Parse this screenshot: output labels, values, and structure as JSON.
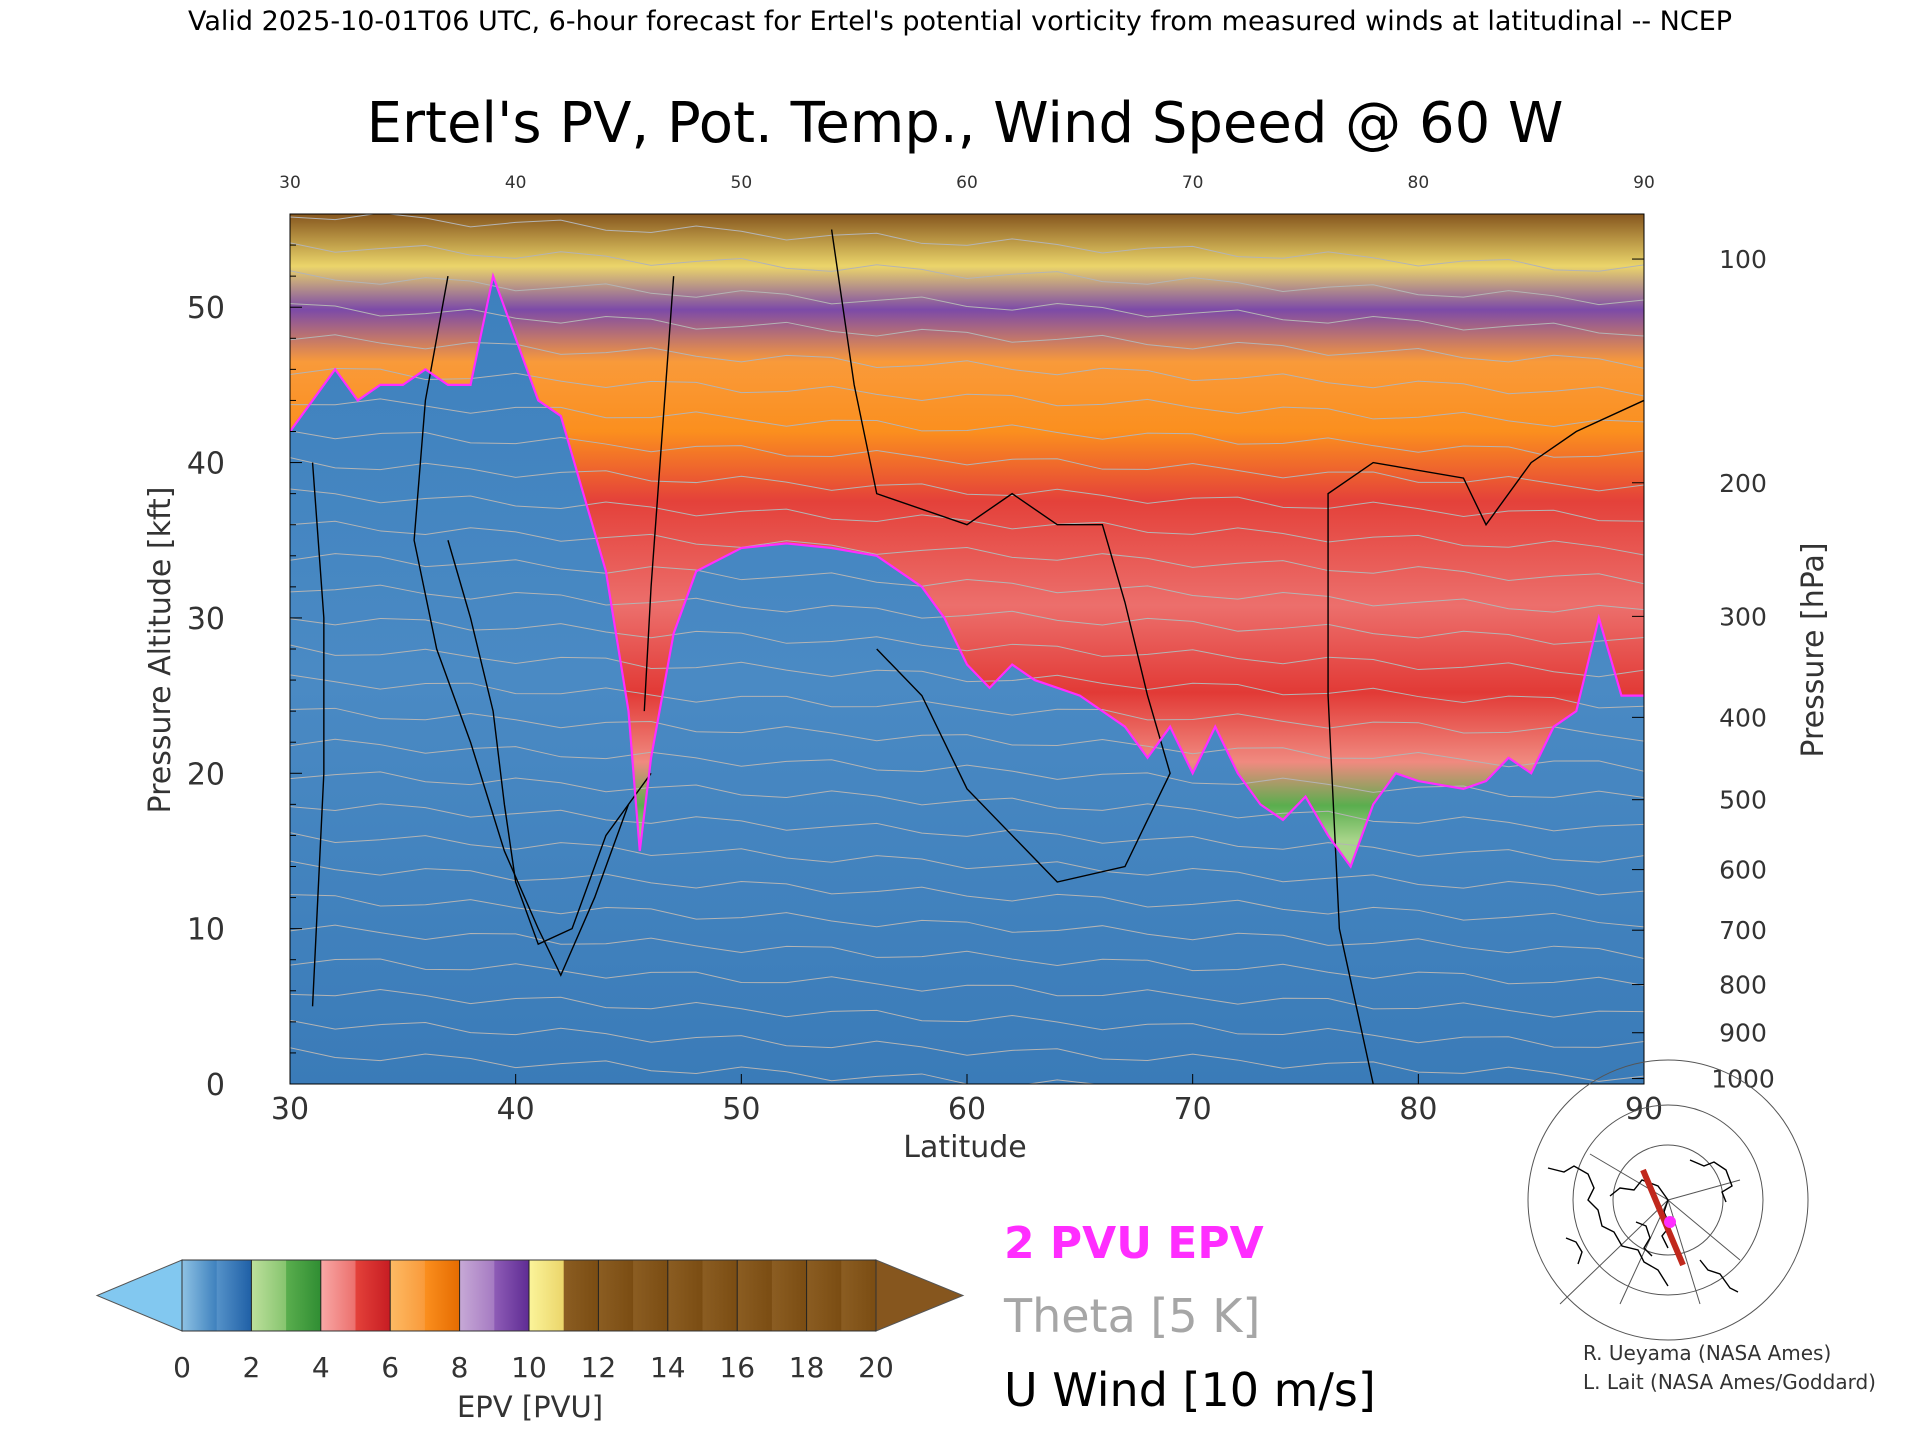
{
  "header": {
    "top_line": "Valid 2025-10-01T06 UTC, 6-hour forecast for Ertel's potential vorticity from measured winds at latitudinal -- NCEP",
    "main_title": "Ertel's PV, Pot. Temp., Wind Speed @ 60 W"
  },
  "chart_data": {
    "type": "heatmap",
    "title": "Ertel's PV, Pot. Temp., Wind Speed @ 60 W",
    "xlabel": "Latitude",
    "ylabel_left": "Pressure Altitude [kft]",
    "ylabel_right": "Pressure [hPa]",
    "xlim": [
      30,
      90
    ],
    "ylim": [
      0,
      56
    ],
    "x_ticks": [
      30,
      40,
      50,
      60,
      70,
      80,
      90
    ],
    "x_ticks_top": [
      30,
      40,
      50,
      60,
      70,
      80,
      90
    ],
    "y_ticks": [
      0,
      10,
      20,
      30,
      40,
      50
    ],
    "pressure_ticks": [
      {
        "hPa": 1000,
        "kft": 0.35
      },
      {
        "hPa": 900,
        "kft": 3.3
      },
      {
        "hPa": 800,
        "kft": 6.4
      },
      {
        "hPa": 700,
        "kft": 9.9
      },
      {
        "hPa": 600,
        "kft": 13.8
      },
      {
        "hPa": 500,
        "kft": 18.3
      },
      {
        "hPa": 400,
        "kft": 23.6
      },
      {
        "hPa": 300,
        "kft": 30.1
      },
      {
        "hPa": 200,
        "kft": 38.7
      },
      {
        "hPa": 100,
        "kft": 53.1
      }
    ],
    "tropopause_2pvu_kft": [
      [
        30,
        42
      ],
      [
        31,
        44
      ],
      [
        32,
        46
      ],
      [
        33,
        44
      ],
      [
        34,
        45
      ],
      [
        35,
        45
      ],
      [
        36,
        46
      ],
      [
        37,
        45
      ],
      [
        38,
        45
      ],
      [
        39,
        52
      ],
      [
        40,
        48
      ],
      [
        41,
        44
      ],
      [
        42,
        43
      ],
      [
        43,
        38
      ],
      [
        44,
        33
      ],
      [
        45,
        24
      ],
      [
        45.5,
        15
      ],
      [
        46,
        21
      ],
      [
        47,
        29
      ],
      [
        48,
        33
      ],
      [
        50,
        34.5
      ],
      [
        52,
        34.8
      ],
      [
        54,
        34.5
      ],
      [
        56,
        34
      ],
      [
        58,
        32
      ],
      [
        59,
        30
      ],
      [
        60,
        27
      ],
      [
        61,
        25.5
      ],
      [
        62,
        27
      ],
      [
        63,
        26
      ],
      [
        64,
        25.5
      ],
      [
        65,
        25
      ],
      [
        66,
        24
      ],
      [
        67,
        23
      ],
      [
        68,
        21
      ],
      [
        69,
        23
      ],
      [
        70,
        20
      ],
      [
        71,
        23
      ],
      [
        72,
        20
      ],
      [
        73,
        18
      ],
      [
        74,
        17
      ],
      [
        75,
        18.5
      ],
      [
        76,
        16
      ],
      [
        77,
        14
      ],
      [
        78,
        18
      ],
      [
        79,
        20
      ],
      [
        80,
        19.5
      ],
      [
        82,
        19
      ],
      [
        83,
        19.5
      ],
      [
        84,
        21
      ],
      [
        85,
        20
      ],
      [
        86,
        23
      ],
      [
        87,
        24
      ],
      [
        88,
        30
      ],
      [
        89,
        25
      ],
      [
        90,
        25
      ]
    ],
    "u_wind_10_contours": [
      [
        [
          31,
          5
        ],
        [
          31.5,
          20
        ],
        [
          31.5,
          30
        ],
        [
          31,
          40
        ]
      ],
      [
        [
          37,
          52
        ],
        [
          36,
          44
        ],
        [
          35.5,
          35
        ],
        [
          36.5,
          28
        ],
        [
          38,
          22
        ],
        [
          39.5,
          15
        ],
        [
          41,
          10
        ],
        [
          42,
          7
        ],
        [
          43.5,
          12
        ],
        [
          45,
          18
        ],
        [
          46,
          20
        ]
      ],
      [
        [
          37,
          35
        ],
        [
          38,
          30
        ],
        [
          39,
          24
        ],
        [
          39.5,
          18
        ],
        [
          40,
          13
        ],
        [
          41,
          9
        ],
        [
          42.5,
          10
        ],
        [
          44,
          16
        ],
        [
          45,
          18
        ]
      ],
      [
        [
          47,
          52
        ],
        [
          46.5,
          42
        ],
        [
          46,
          32
        ],
        [
          45.7,
          24
        ]
      ],
      [
        [
          54,
          55
        ],
        [
          55,
          45
        ],
        [
          56,
          38
        ],
        [
          60,
          36
        ],
        [
          62,
          38
        ],
        [
          64,
          36
        ],
        [
          66,
          36
        ],
        [
          67,
          31
        ],
        [
          68,
          25
        ],
        [
          69,
          20
        ],
        [
          67,
          14
        ],
        [
          64,
          13
        ],
        [
          62,
          16
        ],
        [
          60,
          19
        ],
        [
          58,
          25
        ],
        [
          56,
          28
        ]
      ],
      [
        [
          78,
          0
        ],
        [
          76.5,
          10
        ],
        [
          76,
          25
        ],
        [
          76,
          38
        ],
        [
          78,
          40
        ],
        [
          82,
          39
        ],
        [
          83,
          36
        ],
        [
          85,
          40
        ],
        [
          87,
          42
        ],
        [
          90,
          44
        ]
      ]
    ],
    "colorbar": {
      "label": "EPV [PVU]",
      "ticks": [
        0,
        2,
        4,
        6,
        8,
        10,
        12,
        14,
        16,
        18,
        20
      ],
      "under_color": "#82c8f0",
      "over_color": "#86561e",
      "segments": [
        [
          "#8ec2e4",
          "#3d80bd"
        ],
        [
          "#5592c9",
          "#1e5fa6"
        ],
        [
          "#bde09c",
          "#86c46e"
        ],
        [
          "#5aae4e",
          "#2f8d32"
        ],
        [
          "#f8a8a6",
          "#ec6f6c"
        ],
        [
          "#e4413a",
          "#c61c22"
        ],
        [
          "#fdba64",
          "#f99a3a"
        ],
        [
          "#fb8f1e",
          "#e56b00"
        ],
        [
          "#c7a9d6",
          "#a57ac2"
        ],
        [
          "#8e5cb6",
          "#5e2b93"
        ],
        [
          "#fbf49a",
          "#ebd56a"
        ],
        [
          "#8b5d22",
          "#7a4c12"
        ]
      ]
    },
    "legend": [
      {
        "label": "2 PVU EPV",
        "color": "#ff2dff"
      },
      {
        "label": "Theta [5 K]",
        "color": "#a6a6a6"
      },
      {
        "label": "U Wind [10 m/s]",
        "color": "#000000"
      }
    ],
    "grid": false
  },
  "credits": {
    "line1": "R. Ueyama (NASA Ames)",
    "line2": "L. Lait (NASA Ames/Goddard)"
  },
  "inset_map": {
    "track_color": "#c0281c",
    "marker_color": "#ff2dff"
  }
}
